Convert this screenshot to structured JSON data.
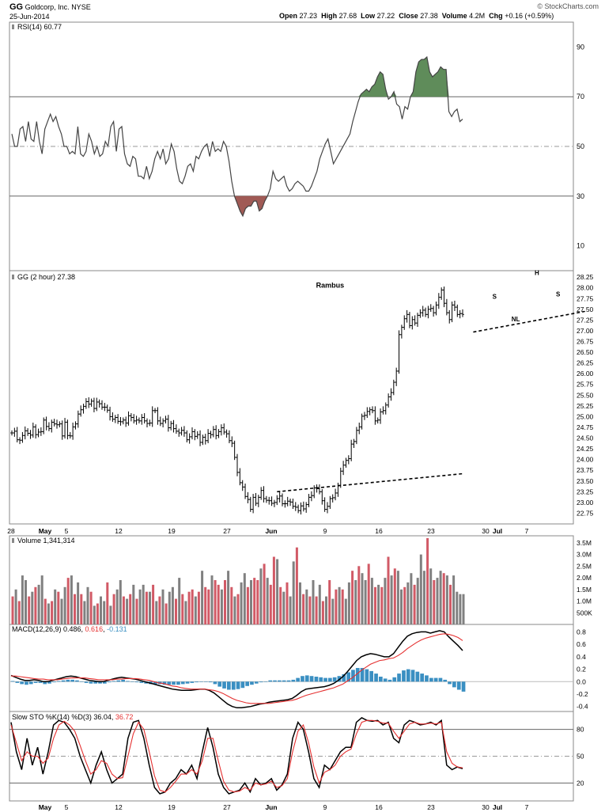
{
  "header": {
    "symbol": "GG",
    "company": "Goldcorp, Inc.",
    "exchange": "NYSE",
    "date": "25-Jun-2014",
    "open_label": "Open",
    "open": "27.23",
    "high_label": "High",
    "high": "27.68",
    "low_label": "Low",
    "low": "27.22",
    "close_label": "Close",
    "close": "27.38",
    "volume_label": "Volume",
    "volume": "4.2M",
    "chg_label": "Chg",
    "chg": "+0.16 (+0.59%)",
    "watermark": "© StockCharts.com"
  },
  "chart_data": [
    {
      "type": "line",
      "panel": "rsi",
      "title": "RSI(14) 60.77",
      "ylim": [
        0,
        100
      ],
      "ticks": [
        10,
        30,
        50,
        70,
        90
      ],
      "levels": [
        30,
        50,
        70
      ],
      "values": [
        55,
        50,
        50,
        57,
        58,
        52,
        60,
        53,
        52,
        60,
        52,
        47,
        57,
        60,
        63,
        60,
        62,
        58,
        55,
        50,
        50,
        47,
        48,
        47,
        58,
        47,
        46,
        48,
        55,
        52,
        47,
        50,
        46,
        47,
        52,
        50,
        58,
        60,
        48,
        57,
        58,
        47,
        43,
        42,
        46,
        45,
        38,
        38,
        37,
        42,
        37,
        40,
        45,
        48,
        45,
        49,
        43,
        45,
        51,
        48,
        41,
        36,
        35,
        38,
        42,
        43,
        40,
        46,
        45,
        48,
        50,
        51,
        46,
        52,
        48,
        49,
        48,
        52,
        50,
        44,
        36,
        30,
        27,
        24,
        22,
        25,
        26,
        26,
        28,
        28,
        24,
        25,
        28,
        30,
        33,
        40,
        37,
        36,
        37,
        38,
        34,
        32,
        33,
        35,
        36,
        35,
        34,
        32,
        32,
        34,
        37,
        40,
        45,
        48,
        51,
        53,
        48,
        43,
        45,
        47,
        49,
        51,
        53,
        55,
        60,
        64,
        68,
        71,
        72,
        73,
        72,
        74,
        75,
        78,
        80,
        79,
        73,
        69,
        70,
        72,
        67,
        66,
        61,
        66,
        65,
        70,
        72,
        80,
        84,
        85,
        85,
        86,
        80,
        78,
        79,
        80,
        82,
        81,
        81,
        64,
        62,
        64,
        65,
        60,
        61
      ],
      "color": "#444444",
      "fill_above": 70,
      "fill_above_color": "#5f8c5a",
      "fill_below": 30,
      "fill_below_color": "#a05a55"
    },
    {
      "type": "candlestick",
      "panel": "price",
      "title": "GG (2 hour) 27.38",
      "ylim": [
        22.5,
        28.4
      ],
      "ticks": [
        22.75,
        23.0,
        23.25,
        23.5,
        23.75,
        24.0,
        24.25,
        24.5,
        24.75,
        25.0,
        25.25,
        25.5,
        25.75,
        26.0,
        26.25,
        26.5,
        26.75,
        27.0,
        27.25,
        27.5,
        27.75,
        28.0,
        28.25
      ],
      "closes": [
        24.62,
        24.66,
        24.46,
        24.45,
        24.56,
        24.67,
        24.61,
        24.57,
        24.76,
        24.58,
        24.64,
        24.65,
        24.92,
        24.77,
        24.72,
        24.87,
        24.83,
        24.81,
        24.83,
        24.55,
        24.87,
        24.56,
        24.55,
        24.76,
        24.83,
        25.06,
        25.16,
        25.24,
        25.35,
        25.29,
        25.36,
        25.19,
        25.34,
        25.3,
        25.22,
        25.22,
        25.15,
        25.0,
        24.94,
        24.98,
        24.89,
        24.88,
        24.92,
        24.85,
        25.02,
        24.98,
        24.9,
        24.92,
        24.9,
        24.98,
        24.9,
        24.84,
        24.85,
        25.14,
        25.14,
        24.9,
        24.84,
        24.9,
        24.94,
        24.74,
        24.84,
        24.72,
        24.66,
        24.62,
        24.68,
        24.62,
        24.46,
        24.53,
        24.65,
        24.54,
        24.58,
        24.4,
        24.52,
        24.44,
        24.61,
        24.58,
        24.7,
        24.56,
        24.65,
        24.74,
        24.64,
        24.6,
        24.44,
        24.38,
        24.05,
        23.7,
        23.46,
        23.36,
        23.14,
        23.07,
        22.84,
        23.12,
        22.98,
        23.12,
        23.28,
        23.09,
        23.05,
        23.04,
        22.98,
        23.0,
        23.09,
        23.15,
        22.97,
        22.97,
        23.03,
        23.01,
        22.91,
        22.89,
        22.81,
        22.92,
        22.85,
        22.95,
        23.12,
        23.16,
        23.34,
        23.32,
        23.25,
        23.04,
        22.84,
        22.91,
        23.09,
        23.11,
        23.22,
        23.4,
        23.73,
        23.87,
        23.98,
        24.02,
        24.36,
        24.42,
        24.68,
        24.76,
        25.01,
        25.03,
        25.12,
        25.16,
        25.14,
        24.9,
        24.92,
        25.11,
        25.14,
        25.27,
        25.46,
        25.56,
        25.8,
        26.06,
        26.91,
        27.08,
        27.28,
        27.38,
        27.12,
        27.26,
        27.18,
        27.36,
        27.42,
        27.48,
        27.38,
        27.5,
        27.52,
        27.42,
        27.6,
        27.78,
        27.95,
        27.64,
        27.42,
        27.26,
        27.6,
        27.55,
        27.38,
        27.4,
        27.38
      ],
      "necklines": [
        {
          "x": [
            100,
            170
          ],
          "y": [
            23.25,
            23.67
          ]
        },
        {
          "x": [
            174,
            216
          ],
          "y": [
            26.97,
            27.45
          ]
        }
      ],
      "annotations": [
        {
          "text": "Rambus",
          "x": 120,
          "y": 28.0
        },
        {
          "text": "S",
          "x": 182,
          "y": 27.75
        },
        {
          "text": "H",
          "x": 198,
          "y": 28.3
        },
        {
          "text": "S",
          "x": 206,
          "y": 27.8
        },
        {
          "text": "NL",
          "x": 190,
          "y": 27.22
        }
      ]
    },
    {
      "type": "bar",
      "panel": "volume",
      "title": "Volume 1,341,314",
      "ylim": [
        0,
        3.8
      ],
      "ticks": [
        0.5,
        1.0,
        1.5,
        2.0,
        2.5,
        3.0,
        3.5
      ],
      "tick_labels": [
        "500K",
        "1.0M",
        "1.5M",
        "2.0M",
        "2.5M",
        "3.0M",
        "3.5M"
      ],
      "up_color": "#808080",
      "down_color": "#d15a66",
      "values": [
        1.2,
        1.5,
        1.0,
        2.1,
        1.9,
        1.2,
        1.4,
        1.6,
        1.7,
        2.1,
        1.1,
        0.9,
        1.0,
        1.5,
        1.4,
        1.1,
        1.6,
        2.0,
        2.1,
        1.3,
        1.8,
        1.3,
        1.0,
        1.6,
        1.4,
        0.8,
        0.9,
        1.2,
        1.0,
        1.8,
        0.8,
        1.3,
        1.5,
        1.9,
        1.2,
        1.1,
        1.3,
        1.7,
        1.1,
        1.5,
        1.7,
        1.4,
        1.4,
        1.7,
        1.0,
        1.2,
        1.5,
        0.9,
        1.4,
        1.6,
        1.1,
        2.0,
        1.3,
        1.0,
        1.4,
        1.5,
        1.2,
        1.4,
        2.3,
        1.6,
        1.5,
        2.1,
        1.9,
        1.7,
        1.5,
        1.9,
        2.3,
        1.6,
        1.2,
        1.3,
        1.8,
        2.2,
        1.6,
        1.9,
        2.0,
        1.9,
        2.4,
        2.6,
        2.0,
        1.7,
        2.9,
        2.8,
        1.6,
        1.4,
        1.8,
        1.2,
        2.7,
        3.3,
        1.8,
        1.3,
        1.5,
        1.2,
        1.9,
        1.2,
        1.7,
        1.0,
        1.2,
        1.9,
        1.1,
        1.5,
        1.6,
        1.5,
        1.1,
        1.8,
        2.3,
        1.9,
        2.5,
        2.2,
        1.9,
        2.6,
        2.0,
        1.6,
        1.7,
        1.6,
        2.0,
        2.9,
        2.1,
        2.4,
        2.3,
        1.5,
        1.6,
        1.8,
        2.2,
        1.7,
        2.0,
        3.0,
        2.3,
        3.7,
        2.4,
        1.9,
        2.0,
        2.3,
        2.2,
        2.1,
        1.7,
        2.1,
        1.4,
        1.3,
        1.3
      ],
      "down_flags": [
        1,
        0,
        1,
        0,
        0,
        1,
        0,
        1,
        0,
        0,
        1,
        0,
        1,
        0,
        1,
        0,
        0,
        1,
        0,
        1,
        0,
        1,
        0,
        0,
        1,
        0,
        1,
        0,
        0,
        1,
        0,
        1,
        0,
        0,
        1,
        0,
        1,
        0,
        1,
        0,
        0,
        1,
        0,
        1,
        0,
        1,
        0,
        1,
        0,
        0,
        1,
        0,
        1,
        0,
        1,
        1,
        0,
        1,
        0,
        1,
        1,
        0,
        1,
        1,
        0,
        1,
        0,
        1,
        0,
        1,
        0,
        0,
        1,
        0,
        1,
        1,
        0,
        1,
        0,
        1,
        1,
        0,
        1,
        0,
        1,
        0,
        0,
        1,
        0,
        1,
        0,
        1,
        0,
        1,
        0,
        1,
        0,
        1,
        0,
        1,
        0,
        1,
        0,
        0,
        1,
        0,
        1,
        0,
        0,
        1,
        0,
        1,
        0,
        1,
        0,
        1,
        0,
        1,
        0,
        0,
        1,
        0,
        0,
        1,
        0,
        0,
        0,
        1,
        0,
        1,
        0,
        0,
        1,
        0,
        1,
        0,
        0
      ]
    },
    {
      "type": "line",
      "panel": "macd",
      "title": "MACD(12,26,9)",
      "value_1": "0.486",
      "value_2": "0.616",
      "value_3": "-0.131",
      "ylim": [
        -0.48,
        0.92
      ],
      "ticks": [
        -0.4,
        -0.2,
        0.0,
        0.2,
        0.4,
        0.6,
        0.8
      ],
      "series": [
        {
          "role": "macd",
          "color": "#000000",
          "values": [
            0.1,
            0.07,
            0.04,
            0.02,
            0.02,
            0.03,
            0.02,
            0.0,
            0.0,
            0.02,
            0.04,
            0.06,
            0.08,
            0.09,
            0.08,
            0.06,
            0.04,
            0.02,
            0.01,
            0.0,
            0.0,
            0.02,
            0.04,
            0.06,
            0.07,
            0.06,
            0.05,
            0.04,
            0.02,
            0.0,
            -0.02,
            -0.04,
            -0.06,
            -0.08,
            -0.1,
            -0.12,
            -0.13,
            -0.14,
            -0.14,
            -0.14,
            -0.13,
            -0.12,
            -0.12,
            -0.14,
            -0.18,
            -0.24,
            -0.3,
            -0.36,
            -0.4,
            -0.42,
            -0.42,
            -0.41,
            -0.4,
            -0.38,
            -0.36,
            -0.35,
            -0.33,
            -0.32,
            -0.31,
            -0.3,
            -0.29,
            -0.27,
            -0.22,
            -0.16,
            -0.12,
            -0.11,
            -0.1,
            -0.09,
            -0.08,
            -0.06,
            -0.03,
            0.02,
            0.08,
            0.16,
            0.25,
            0.34,
            0.4,
            0.43,
            0.45,
            0.44,
            0.42,
            0.4,
            0.4,
            0.45,
            0.55,
            0.65,
            0.73,
            0.77,
            0.79,
            0.8,
            0.8,
            0.78,
            0.8,
            0.82,
            0.8,
            0.72,
            0.65,
            0.58,
            0.5
          ]
        },
        {
          "role": "signal",
          "color": "#e53030",
          "values": [
            0.09,
            0.09,
            0.08,
            0.07,
            0.06,
            0.05,
            0.04,
            0.04,
            0.03,
            0.03,
            0.03,
            0.04,
            0.05,
            0.06,
            0.06,
            0.06,
            0.06,
            0.05,
            0.04,
            0.03,
            0.03,
            0.03,
            0.03,
            0.04,
            0.04,
            0.05,
            0.05,
            0.05,
            0.04,
            0.03,
            0.02,
            0.0,
            -0.02,
            -0.03,
            -0.05,
            -0.07,
            -0.08,
            -0.1,
            -0.11,
            -0.12,
            -0.12,
            -0.12,
            -0.12,
            -0.13,
            -0.14,
            -0.16,
            -0.19,
            -0.23,
            -0.27,
            -0.3,
            -0.32,
            -0.34,
            -0.35,
            -0.35,
            -0.35,
            -0.35,
            -0.35,
            -0.34,
            -0.33,
            -0.32,
            -0.31,
            -0.3,
            -0.28,
            -0.25,
            -0.22,
            -0.2,
            -0.18,
            -0.16,
            -0.14,
            -0.12,
            -0.1,
            -0.07,
            -0.04,
            0.01,
            0.06,
            0.12,
            0.18,
            0.23,
            0.28,
            0.31,
            0.34,
            0.35,
            0.37,
            0.38,
            0.42,
            0.47,
            0.53,
            0.58,
            0.63,
            0.67,
            0.7,
            0.72,
            0.74,
            0.76,
            0.77,
            0.76,
            0.74,
            0.71,
            0.66
          ]
        }
      ],
      "histogram_color": "#3a8fc2",
      "histogram": [
        0.01,
        -0.02,
        -0.04,
        -0.05,
        -0.04,
        -0.02,
        -0.02,
        -0.04,
        -0.03,
        -0.01,
        0.01,
        0.02,
        0.03,
        0.03,
        0.02,
        0.0,
        -0.02,
        -0.03,
        -0.03,
        -0.03,
        -0.03,
        -0.01,
        0.01,
        0.02,
        0.03,
        0.01,
        0.0,
        -0.01,
        -0.02,
        -0.03,
        -0.04,
        -0.04,
        -0.04,
        -0.05,
        -0.05,
        -0.05,
        -0.05,
        -0.04,
        -0.03,
        -0.02,
        -0.01,
        0.0,
        0.0,
        -0.01,
        -0.04,
        -0.08,
        -0.11,
        -0.13,
        -0.13,
        -0.12,
        -0.1,
        -0.07,
        -0.05,
        -0.03,
        -0.01,
        0.0,
        0.02,
        0.02,
        0.02,
        0.02,
        0.02,
        0.03,
        0.06,
        0.09,
        0.1,
        0.09,
        0.08,
        0.07,
        0.06,
        0.06,
        0.07,
        0.09,
        0.12,
        0.15,
        0.19,
        0.22,
        0.22,
        0.2,
        0.17,
        0.13,
        0.08,
        0.05,
        0.03,
        0.07,
        0.13,
        0.18,
        0.2,
        0.19,
        0.16,
        0.13,
        0.1,
        0.06,
        0.06,
        0.06,
        0.03,
        -0.04,
        -0.09,
        -0.13,
        -0.16
      ]
    },
    {
      "type": "line",
      "panel": "slow_sto",
      "title": "Slow STO %K(14) %D(3)",
      "value_1": "36.04",
      "value_2": "36.72",
      "ylim": [
        0,
        100
      ],
      "ticks": [
        20,
        50,
        80
      ],
      "levels": [
        20,
        50,
        80
      ],
      "series": [
        {
          "role": "%K",
          "color": "#000000",
          "values": [
            88,
            55,
            35,
            70,
            40,
            60,
            30,
            55,
            85,
            90,
            88,
            80,
            70,
            50,
            35,
            20,
            40,
            55,
            35,
            20,
            25,
            30,
            70,
            88,
            90,
            70,
            40,
            15,
            8,
            10,
            20,
            25,
            35,
            30,
            40,
            25,
            55,
            82,
            60,
            30,
            15,
            8,
            10,
            12,
            20,
            10,
            25,
            18,
            20,
            25,
            12,
            18,
            30,
            70,
            88,
            80,
            55,
            25,
            15,
            40,
            35,
            45,
            55,
            60,
            60,
            88,
            93,
            90,
            89,
            90,
            85,
            88,
            70,
            65,
            85,
            90,
            88,
            85,
            86,
            88,
            85,
            90,
            40,
            35,
            38,
            36
          ]
        },
        {
          "role": "%D",
          "color": "#e53030",
          "values": [
            85,
            65,
            45,
            55,
            50,
            50,
            42,
            48,
            70,
            85,
            89,
            85,
            78,
            62,
            45,
            30,
            35,
            45,
            42,
            30,
            25,
            26,
            50,
            75,
            88,
            80,
            55,
            28,
            12,
            10,
            15,
            22,
            30,
            30,
            35,
            30,
            45,
            70,
            70,
            45,
            22,
            12,
            10,
            11,
            15,
            12,
            20,
            18,
            19,
            22,
            15,
            17,
            25,
            55,
            78,
            85,
            65,
            38,
            20,
            32,
            35,
            40,
            50,
            55,
            58,
            75,
            88,
            90,
            90,
            89,
            87,
            87,
            78,
            70,
            78,
            86,
            88,
            86,
            86,
            87,
            86,
            88,
            55,
            42,
            38,
            37
          ]
        }
      ]
    }
  ],
  "x_axis": {
    "price_labels": [
      "28",
      "May",
      "5",
      "12",
      "19",
      "27",
      "Jun",
      "9",
      "16",
      "23",
      "30",
      "Jul",
      "7"
    ],
    "bottom_labels": [
      "May",
      "5",
      "12",
      "19",
      "27",
      "Jun",
      "9",
      "16",
      "23",
      "30",
      "Jul",
      "7"
    ]
  }
}
